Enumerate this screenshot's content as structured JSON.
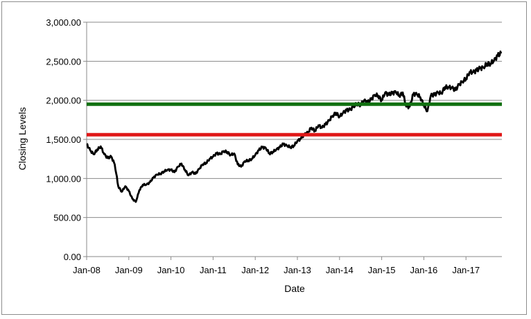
{
  "chart_data": {
    "type": "line",
    "title": "",
    "xlabel": "Date",
    "ylabel": "Closing Levels",
    "ylim": [
      0,
      3000
    ],
    "yticks": [
      "0.00",
      "500.00",
      "1,000.00",
      "1,500.00",
      "2,000.00",
      "2,500.00",
      "3,000.00"
    ],
    "xticks": [
      "Jan-08",
      "Jan-09",
      "Jan-10",
      "Jan-11",
      "Jan-12",
      "Jan-13",
      "Jan-14",
      "Jan-15",
      "Jan-16",
      "Jan-17"
    ],
    "grid": "horizontal",
    "series": [
      {
        "color": "#000000",
        "points": [
          [
            "2008-01",
            1440
          ],
          [
            "2008-02",
            1360
          ],
          [
            "2008-03",
            1310
          ],
          [
            "2008-04",
            1370
          ],
          [
            "2008-05",
            1410
          ],
          [
            "2008-06",
            1310
          ],
          [
            "2008-07",
            1260
          ],
          [
            "2008-08",
            1280
          ],
          [
            "2008-09",
            1180
          ],
          [
            "2008-10",
            900
          ],
          [
            "2008-11",
            830
          ],
          [
            "2008-12",
            900
          ],
          [
            "2009-01",
            840
          ],
          [
            "2009-02",
            740
          ],
          [
            "2009-03",
            700
          ],
          [
            "2009-04",
            850
          ],
          [
            "2009-05",
            920
          ],
          [
            "2009-06",
            920
          ],
          [
            "2009-07",
            950
          ],
          [
            "2009-08",
            1010
          ],
          [
            "2009-09",
            1050
          ],
          [
            "2009-10",
            1060
          ],
          [
            "2009-11",
            1090
          ],
          [
            "2009-12",
            1110
          ],
          [
            "2010-01",
            1110
          ],
          [
            "2010-02",
            1080
          ],
          [
            "2010-03",
            1150
          ],
          [
            "2010-04",
            1190
          ],
          [
            "2010-05",
            1110
          ],
          [
            "2010-06",
            1040
          ],
          [
            "2010-07",
            1080
          ],
          [
            "2010-08",
            1060
          ],
          [
            "2010-09",
            1120
          ],
          [
            "2010-10",
            1180
          ],
          [
            "2010-11",
            1200
          ],
          [
            "2010-12",
            1250
          ],
          [
            "2011-01",
            1280
          ],
          [
            "2011-02",
            1320
          ],
          [
            "2011-03",
            1310
          ],
          [
            "2011-04",
            1350
          ],
          [
            "2011-05",
            1340
          ],
          [
            "2011-06",
            1300
          ],
          [
            "2011-07",
            1320
          ],
          [
            "2011-08",
            1180
          ],
          [
            "2011-09",
            1150
          ],
          [
            "2011-10",
            1220
          ],
          [
            "2011-11",
            1230
          ],
          [
            "2011-12",
            1250
          ],
          [
            "2012-01",
            1300
          ],
          [
            "2012-02",
            1360
          ],
          [
            "2012-03",
            1400
          ],
          [
            "2012-04",
            1390
          ],
          [
            "2012-05",
            1320
          ],
          [
            "2012-06",
            1340
          ],
          [
            "2012-07",
            1370
          ],
          [
            "2012-08",
            1400
          ],
          [
            "2012-09",
            1440
          ],
          [
            "2012-10",
            1420
          ],
          [
            "2012-11",
            1400
          ],
          [
            "2012-12",
            1420
          ],
          [
            "2013-01",
            1480
          ],
          [
            "2013-02",
            1510
          ],
          [
            "2013-03",
            1560
          ],
          [
            "2013-04",
            1590
          ],
          [
            "2013-05",
            1650
          ],
          [
            "2013-06",
            1610
          ],
          [
            "2013-07",
            1680
          ],
          [
            "2013-08",
            1650
          ],
          [
            "2013-09",
            1690
          ],
          [
            "2013-10",
            1740
          ],
          [
            "2013-11",
            1800
          ],
          [
            "2013-12",
            1840
          ],
          [
            "2014-01",
            1790
          ],
          [
            "2014-02",
            1840
          ],
          [
            "2014-03",
            1870
          ],
          [
            "2014-04",
            1880
          ],
          [
            "2014-05",
            1920
          ],
          [
            "2014-06",
            1960
          ],
          [
            "2014-07",
            1940
          ],
          [
            "2014-08",
            2000
          ],
          [
            "2014-09",
            1970
          ],
          [
            "2014-10",
            2010
          ],
          [
            "2014-11",
            2070
          ],
          [
            "2014-12",
            2060
          ],
          [
            "2015-01",
            2000
          ],
          [
            "2015-02",
            2100
          ],
          [
            "2015-03",
            2070
          ],
          [
            "2015-04",
            2090
          ],
          [
            "2015-05",
            2110
          ],
          [
            "2015-06",
            2060
          ],
          [
            "2015-07",
            2100
          ],
          [
            "2015-08",
            1920
          ],
          [
            "2015-09",
            1920
          ],
          [
            "2015-10",
            2080
          ],
          [
            "2015-11",
            2080
          ],
          [
            "2015-12",
            2040
          ],
          [
            "2016-01",
            1940
          ],
          [
            "2016-02",
            1860
          ],
          [
            "2016-03",
            2060
          ],
          [
            "2016-04",
            2070
          ],
          [
            "2016-05",
            2100
          ],
          [
            "2016-06",
            2090
          ],
          [
            "2016-07",
            2170
          ],
          [
            "2016-08",
            2170
          ],
          [
            "2016-09",
            2160
          ],
          [
            "2016-10",
            2130
          ],
          [
            "2016-11",
            2200
          ],
          [
            "2016-12",
            2240
          ],
          [
            "2017-01",
            2280
          ],
          [
            "2017-02",
            2360
          ],
          [
            "2017-03",
            2360
          ],
          [
            "2017-04",
            2380
          ],
          [
            "2017-05",
            2410
          ],
          [
            "2017-06",
            2420
          ],
          [
            "2017-07",
            2470
          ],
          [
            "2017-08",
            2470
          ],
          [
            "2017-09",
            2510
          ],
          [
            "2017-10",
            2570
          ],
          [
            "2017-11",
            2600
          ]
        ]
      }
    ],
    "hlines": [
      {
        "color": "#107010",
        "value": 1950
      },
      {
        "color": "#e01818",
        "value": 1560
      }
    ],
    "x_start": "2008-01",
    "x_end": "2017-11"
  }
}
